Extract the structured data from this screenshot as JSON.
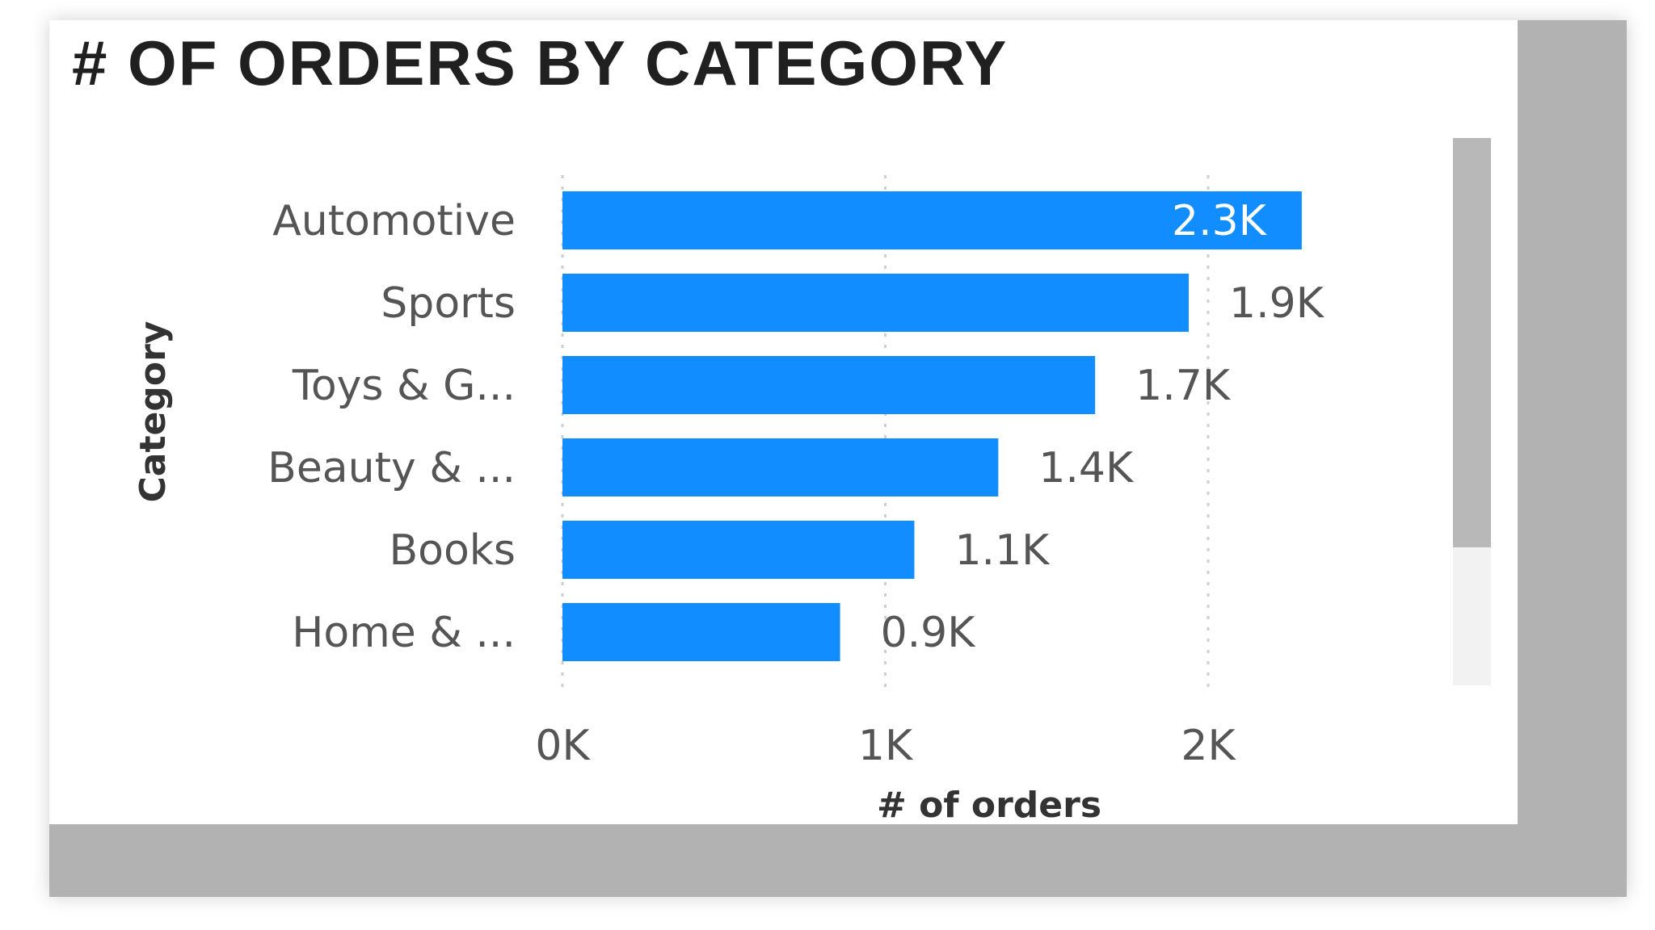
{
  "colors": {
    "bar": "#118DFF",
    "frame": "#b2b2b2",
    "label_inside": "#ffffff",
    "label_outside": "#555555"
  },
  "chart_data": {
    "type": "bar",
    "orientation": "horizontal",
    "title": "# OF ORDERS BY CATEGORY",
    "xlabel": "# of orders",
    "ylabel": "Category",
    "categories": [
      "Automotive",
      "Sports",
      "Toys & G...",
      "Beauty & ...",
      "Books",
      "Home & ..."
    ],
    "values": [
      2290,
      1940,
      1650,
      1350,
      1090,
      860
    ],
    "data_labels": [
      "2.3K",
      "1.9K",
      "1.7K",
      "1.4K",
      "1.1K",
      "0.9K"
    ],
    "xticks": [
      0,
      1000,
      2000
    ],
    "xtick_labels": [
      "0K",
      "1K",
      "2K"
    ],
    "xlim": [
      0,
      2000
    ],
    "grid": "vertical-dashed",
    "legend": "none"
  }
}
